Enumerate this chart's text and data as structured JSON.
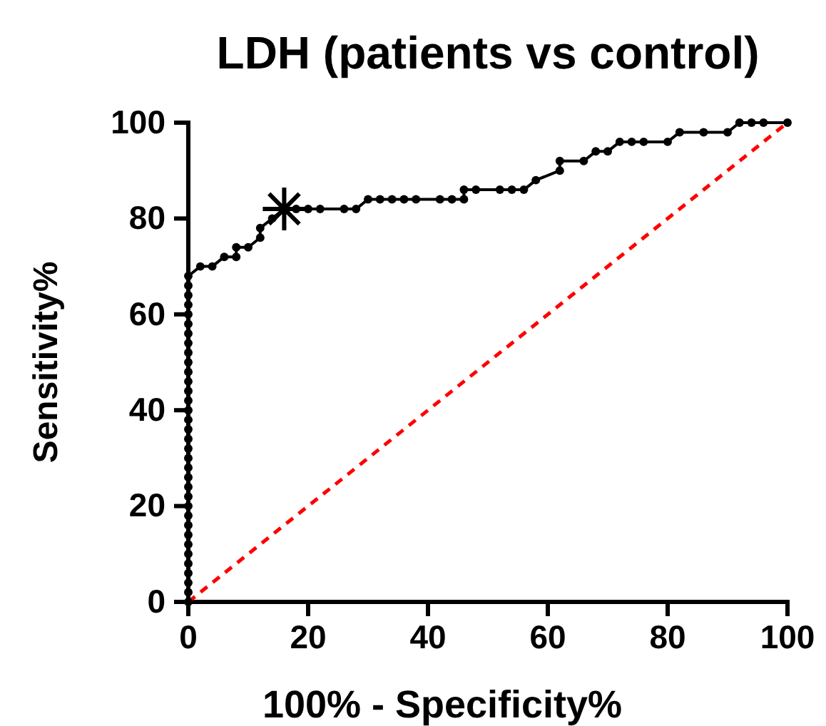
{
  "chart_data": {
    "type": "line",
    "title": "LDH (patients vs control)",
    "xlabel": "100% - Specificity%",
    "ylabel": "Sensitivity%",
    "xlim": [
      0,
      100
    ],
    "ylim": [
      0,
      100
    ],
    "xticks": [
      0,
      20,
      40,
      60,
      80,
      100
    ],
    "yticks": [
      0,
      20,
      40,
      60,
      80,
      100
    ],
    "grid": false,
    "series": [
      {
        "type": "line",
        "color": "#000000",
        "marker": "circle",
        "line_style": "solid",
        "x": [
          0,
          0,
          0,
          0,
          0,
          0,
          0,
          0,
          0,
          0,
          0,
          0,
          0,
          0,
          0,
          0,
          0,
          0,
          0,
          0,
          0,
          0,
          0,
          0,
          0,
          0,
          0,
          0,
          0,
          0,
          0,
          0,
          0,
          0,
          0,
          2,
          4,
          6,
          8,
          8,
          10,
          12,
          12,
          14,
          16,
          18,
          20,
          22,
          26,
          28,
          30,
          32,
          34,
          36,
          38,
          42,
          44,
          46,
          46,
          48,
          52,
          54,
          56,
          58,
          62,
          62,
          66,
          68,
          70,
          72,
          74,
          76,
          80,
          82,
          86,
          90,
          92,
          94,
          96,
          100
        ],
        "values": [
          0,
          2,
          4,
          6,
          8,
          10,
          12,
          14,
          16,
          18,
          20,
          22,
          24,
          26,
          28,
          30,
          32,
          34,
          36,
          38,
          40,
          42,
          44,
          46,
          48,
          50,
          52,
          54,
          56,
          58,
          60,
          62,
          64,
          66,
          68,
          70,
          70,
          72,
          72,
          74,
          74,
          76,
          78,
          80,
          82,
          82,
          82,
          82,
          82,
          82,
          84,
          84,
          84,
          84,
          84,
          84,
          84,
          84,
          86,
          86,
          86,
          86,
          86,
          88,
          90,
          92,
          92,
          94,
          94,
          96,
          96,
          96,
          96,
          98,
          98,
          98,
          100,
          100,
          100,
          100
        ]
      },
      {
        "type": "scatter",
        "color": "#000000",
        "marker": "star",
        "x": [
          16
        ],
        "values": [
          82
        ]
      },
      {
        "type": "line",
        "color": "#ff0000",
        "marker": "none",
        "line_style": "dashed",
        "x": [
          0,
          100
        ],
        "values": [
          0,
          100
        ]
      }
    ]
  }
}
